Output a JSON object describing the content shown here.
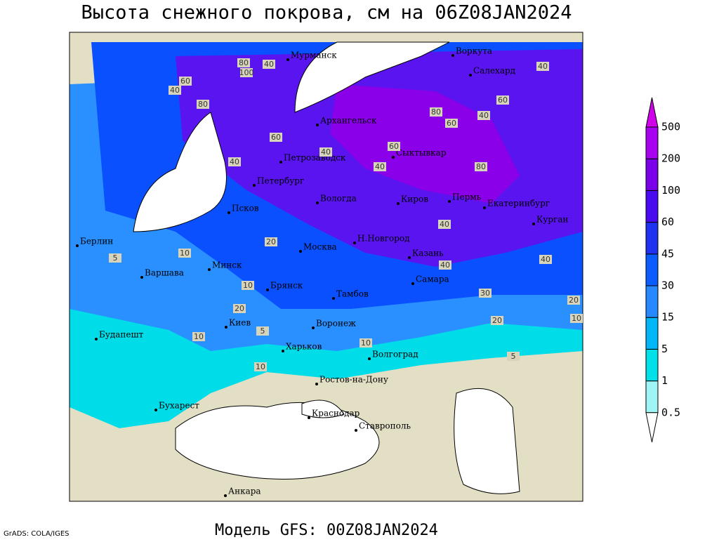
{
  "title": "Высота снежного покрова, см на 06Z08JAN2024",
  "footer": "Модель GFS: 00Z08JAN2024",
  "credit": "GrADS: COLA/IGES",
  "legend": {
    "levels": [
      0.5,
      1,
      5,
      15,
      30,
      45,
      60,
      100,
      200,
      500
    ],
    "colors": [
      "#ffffff",
      "#a0f4f4",
      "#00e0e8",
      "#00b8f8",
      "#2888ff",
      "#0a5cff",
      "#1e32f0",
      "#4a0af0",
      "#7a00e8",
      "#a800f0",
      "#d000e8"
    ]
  },
  "cities": [
    "Мурманск",
    "Воркута",
    "Салехард",
    "Архангельск",
    "Петрозаводск",
    "Сыктывкар",
    "Петербург",
    "Вологда",
    "Киров",
    "Пермь",
    "Екатеринбург",
    "Псков",
    "Курган",
    "Берлин",
    "Н.Новгород",
    "Москва",
    "Казань",
    "Минск",
    "Варшава",
    "Брянск",
    "Тамбов",
    "Самара",
    "Киев",
    "Воронеж",
    "Будапешт",
    "Харьков",
    "Волгоград",
    "Ростов-на-Дону",
    "Бухарест",
    "Краснодар",
    "Ставрополь",
    "Анкара"
  ],
  "contour_labels": [
    80,
    100,
    40,
    60,
    40,
    80,
    60,
    40,
    40,
    60,
    80,
    60,
    40,
    80,
    40,
    60,
    40,
    40,
    40,
    20,
    10,
    10,
    5,
    10,
    20,
    10,
    5,
    10,
    20,
    5,
    10,
    30,
    40,
    20
  ]
}
